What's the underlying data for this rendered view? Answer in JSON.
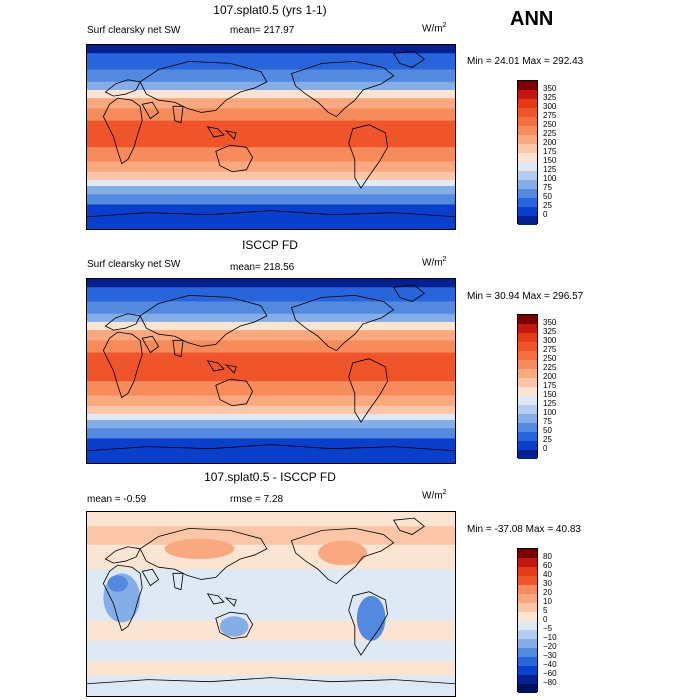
{
  "season_label": "ANN",
  "units_label": "W/m",
  "units_exp": "2",
  "panels": [
    {
      "title": "107.splat0.5 (yrs 1-1)",
      "left_label": "Surf clearsky net SW",
      "mid_label": "mean= 217.97",
      "range_label": "Min =   24.01 Max = 292.43"
    },
    {
      "title": "ISCCP FD",
      "left_label": "Surf clearsky net SW",
      "mid_label": "mean= 218.56",
      "range_label": "Min =   30.94 Max = 296.57"
    },
    {
      "title": "107.splat0.5 - ISCCP FD",
      "left_label": "mean =   -0.59",
      "mid_label": "rmse =    7.28",
      "range_label": "Min = -37.08 Max =   40.83"
    }
  ],
  "colorbar_abs": {
    "labels": [
      "350",
      "325",
      "300",
      "275",
      "250",
      "225",
      "200",
      "175",
      "150",
      "125",
      "100",
      "75",
      "50",
      "25",
      "0"
    ],
    "colors": [
      "#7a0000",
      "#c1190f",
      "#e53a16",
      "#f0542a",
      "#f4703f",
      "#f68c5c",
      "#f9a880",
      "#fbc6a8",
      "#fce4d3",
      "#dfe9f6",
      "#b4cdf0",
      "#85ade8",
      "#5489e0",
      "#2865da",
      "#0a3fcc",
      "#05208f"
    ]
  },
  "colorbar_diff": {
    "labels": [
      "80",
      "60",
      "40",
      "30",
      "20",
      "10",
      "5",
      "0",
      "−5",
      "−10",
      "−20",
      "−30",
      "−40",
      "−60",
      "−80"
    ],
    "colors": [
      "#7a0000",
      "#c1190f",
      "#e53a16",
      "#f0542a",
      "#f68c5c",
      "#f9a880",
      "#fbc6a8",
      "#fce4d3",
      "#dfe9f6",
      "#b4cdf0",
      "#85ade8",
      "#5489e0",
      "#2865da",
      "#0a3fcc",
      "#05208f",
      "#020f5c"
    ]
  },
  "map_palette": {
    "navy": "#05208f",
    "deep_blue": "#0a3fcc",
    "blue": "#2865da",
    "mid_blue": "#5489e0",
    "light_blue": "#85ade8",
    "pale_blue": "#b4cdf0",
    "very_pale_blue": "#dfe9f6",
    "pale_peach": "#fce4d3",
    "peach": "#fbc6a8",
    "light_salmon": "#f9a880",
    "salmon": "#f68c5c",
    "orange": "#f4703f",
    "red_orange": "#f0542a",
    "red": "#e53a16"
  }
}
